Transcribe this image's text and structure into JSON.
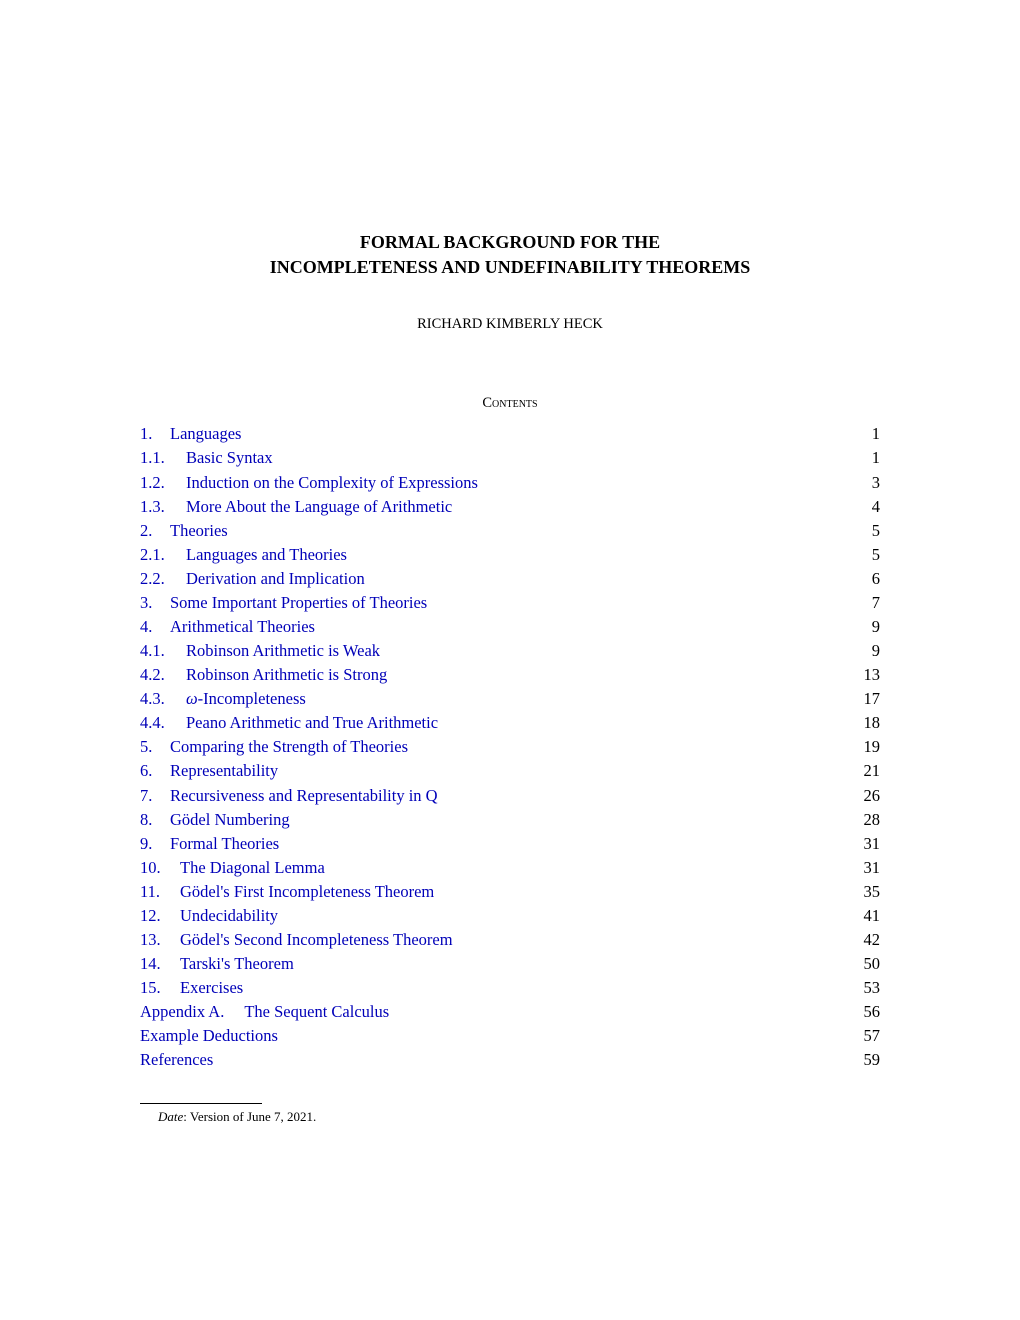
{
  "title_line1": "FORMAL BACKGROUND FOR THE",
  "title_line2": "INCOMPLETENESS AND UNDEFINABILITY THEOREMS",
  "author": "RICHARD KIMBERLY HECK",
  "contents_heading": "Contents",
  "link_color": "#0000b8",
  "text_color": "#000000",
  "background_color": "#ffffff",
  "body_fontsize": 16.5,
  "title_fontsize": 18,
  "toc": [
    {
      "num": "1.",
      "label": "Languages",
      "page": "1",
      "level": 1
    },
    {
      "num": "1.1.",
      "label": "Basic Syntax",
      "page": "1",
      "level": 2
    },
    {
      "num": "1.2.",
      "label": "Induction on the Complexity of Expressions",
      "page": "3",
      "level": 2
    },
    {
      "num": "1.3.",
      "label": "More About the Language of Arithmetic",
      "page": "4",
      "level": 2
    },
    {
      "num": "2.",
      "label": "Theories",
      "page": "5",
      "level": 1
    },
    {
      "num": "2.1.",
      "label": "Languages and Theories",
      "page": "5",
      "level": 2
    },
    {
      "num": "2.2.",
      "label": "Derivation and Implication",
      "page": "6",
      "level": 2
    },
    {
      "num": "3.",
      "label": "Some Important Properties of Theories",
      "page": "7",
      "level": 1
    },
    {
      "num": "4.",
      "label": "Arithmetical Theories",
      "page": "9",
      "level": 1
    },
    {
      "num": "4.1.",
      "label": "Robinson Arithmetic is Weak",
      "page": "9",
      "level": 2
    },
    {
      "num": "4.2.",
      "label": "Robinson Arithmetic is Strong",
      "page": "13",
      "level": 2
    },
    {
      "num": "4.3.",
      "label": "ω-Incompleteness",
      "page": "17",
      "level": 2,
      "omega": true
    },
    {
      "num": "4.4.",
      "label": "Peano Arithmetic and True Arithmetic",
      "page": "18",
      "level": 2
    },
    {
      "num": "5.",
      "label": "Comparing the Strength of Theories",
      "page": "19",
      "level": 1
    },
    {
      "num": "6.",
      "label": "Representability",
      "page": "21",
      "level": 1
    },
    {
      "num": "7.",
      "label": "Recursiveness and Representability in Q",
      "page": "26",
      "level": 1
    },
    {
      "num": "8.",
      "label": "Gödel Numbering",
      "page": "28",
      "level": 1
    },
    {
      "num": "9.",
      "label": "Formal Theories",
      "page": "31",
      "level": 1
    },
    {
      "num": "10.",
      "label": "The Diagonal Lemma",
      "page": "31",
      "level": 1,
      "wide": true
    },
    {
      "num": "11.",
      "label": "Gödel's First Incompleteness Theorem",
      "page": "35",
      "level": 1,
      "wide": true
    },
    {
      "num": "12.",
      "label": "Undecidability",
      "page": "41",
      "level": 1,
      "wide": true
    },
    {
      "num": "13.",
      "label": "Gödel's Second Incompleteness Theorem",
      "page": "42",
      "level": 1,
      "wide": true
    },
    {
      "num": "14.",
      "label": "Tarski's Theorem",
      "page": "50",
      "level": 1,
      "wide": true
    },
    {
      "num": "15.",
      "label": "Exercises",
      "page": "53",
      "level": 1,
      "wide": true
    },
    {
      "num": "Appendix A.",
      "label": "The Sequent Calculus",
      "page": "56",
      "level": 0,
      "appendix": true
    },
    {
      "num": "",
      "label": "Example Deductions",
      "page": "57",
      "level": 0
    },
    {
      "num": "",
      "label": "References",
      "page": "59",
      "level": 0
    }
  ],
  "footnote": {
    "date_label": "Date",
    "date_text": ": Version of June 7, 2021."
  }
}
